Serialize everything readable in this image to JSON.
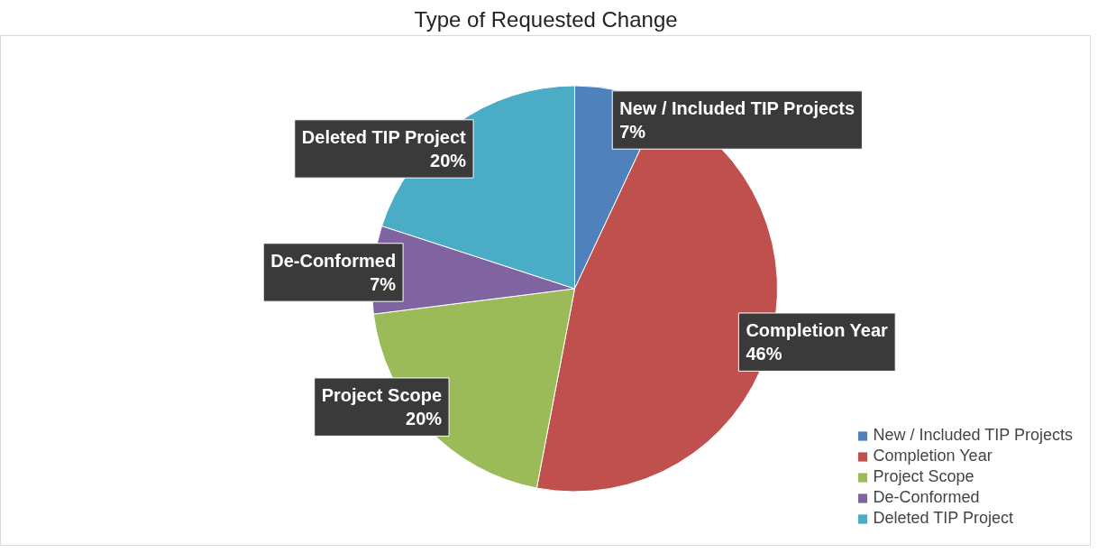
{
  "chart_data": {
    "type": "pie",
    "title": "Type of Requested Change",
    "categories": [
      "New / Included TIP Projects",
      "Completion Year",
      "Project Scope",
      "De-Conformed",
      "Deleted TIP Project"
    ],
    "values": [
      7,
      46,
      20,
      7,
      20
    ],
    "value_labels": [
      "7%",
      "46%",
      "20%",
      "7%",
      "20%"
    ],
    "colors": [
      "#4f81bd",
      "#c0504d",
      "#9bbb59",
      "#8064a2",
      "#4bacc6"
    ],
    "legend": "bottom right"
  }
}
